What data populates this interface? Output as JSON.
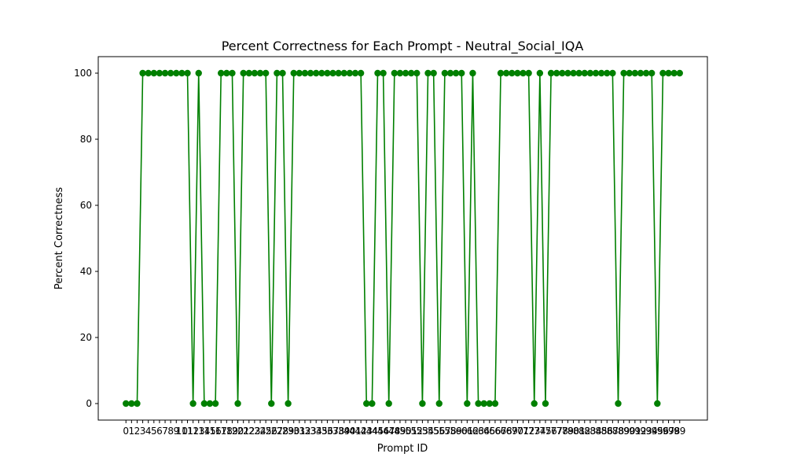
{
  "chart_data": {
    "type": "line",
    "title": "Percent Correctness for Each Prompt - Neutral_Social_IQA",
    "xlabel": "Prompt ID",
    "ylabel": "Percent Correctness",
    "x": [
      0,
      1,
      2,
      3,
      4,
      5,
      6,
      7,
      8,
      9,
      10,
      11,
      12,
      13,
      14,
      15,
      16,
      17,
      18,
      19,
      20,
      21,
      22,
      23,
      24,
      25,
      26,
      27,
      28,
      29,
      30,
      31,
      32,
      33,
      34,
      35,
      36,
      37,
      38,
      39,
      40,
      41,
      42,
      43,
      44,
      45,
      46,
      47,
      48,
      49,
      50,
      51,
      52,
      53,
      54,
      55,
      56,
      57,
      58,
      59,
      60,
      61,
      62,
      63,
      64,
      65,
      66,
      67,
      68,
      69,
      70,
      71,
      72,
      73,
      74,
      75,
      76,
      77,
      78,
      79,
      80,
      81,
      82,
      83,
      84,
      85,
      86,
      87,
      88,
      89,
      90,
      91,
      92,
      93,
      94,
      95,
      96,
      97,
      98,
      99
    ],
    "y": [
      0,
      0,
      0,
      100,
      100,
      100,
      100,
      100,
      100,
      100,
      100,
      100,
      0,
      100,
      0,
      0,
      0,
      100,
      100,
      100,
      0,
      100,
      100,
      100,
      100,
      100,
      0,
      100,
      100,
      0,
      100,
      100,
      100,
      100,
      100,
      100,
      100,
      100,
      100,
      100,
      100,
      100,
      100,
      0,
      0,
      100,
      100,
      0,
      100,
      100,
      100,
      100,
      100,
      0,
      100,
      100,
      0,
      100,
      100,
      100,
      100,
      0,
      100,
      0,
      0,
      0,
      0,
      100,
      100,
      100,
      100,
      100,
      100,
      0,
      100,
      0,
      100,
      100,
      100,
      100,
      100,
      100,
      100,
      100,
      100,
      100,
      100,
      100,
      0,
      100,
      100,
      100,
      100,
      100,
      100,
      0,
      100,
      100,
      100,
      100
    ],
    "xlim": [
      -4.95,
      103.95
    ],
    "ylim": [
      -5,
      105
    ],
    "yticks": [
      0,
      20,
      40,
      60,
      80,
      100
    ],
    "line_color": "#008000",
    "marker": "circle",
    "grid": false,
    "legend": "none"
  }
}
